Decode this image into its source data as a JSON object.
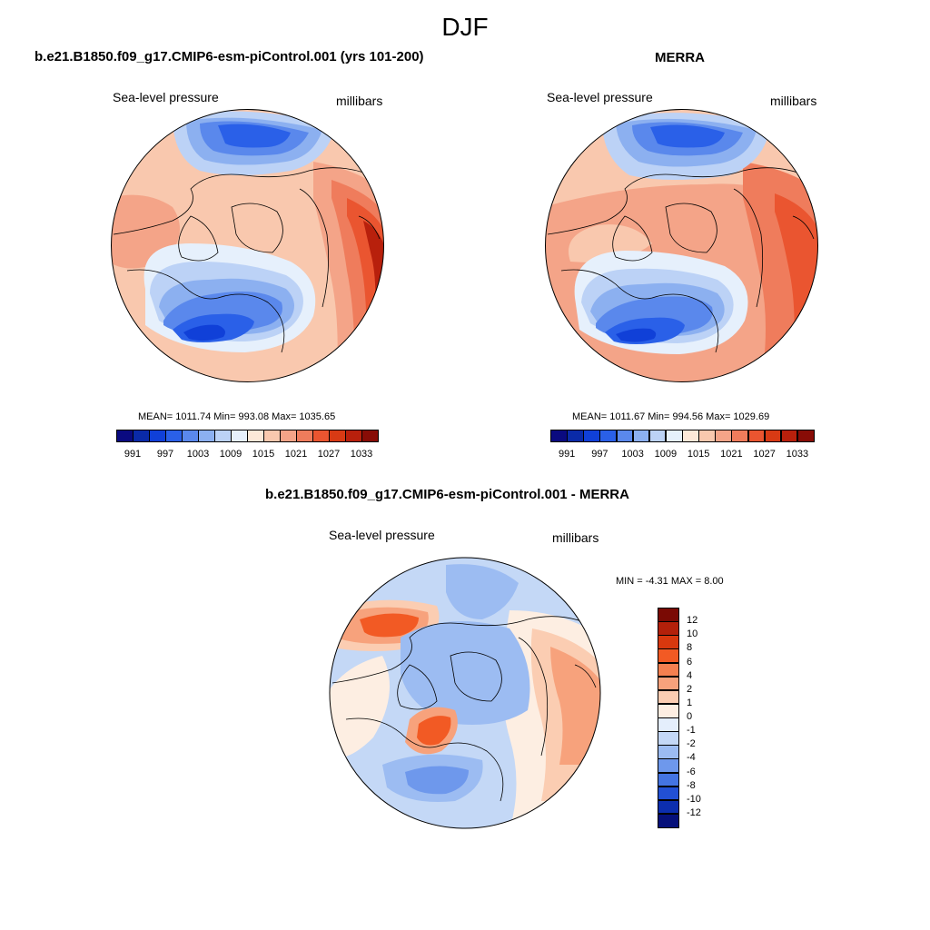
{
  "page": {
    "title": "DJF"
  },
  "panels": [
    {
      "id": "model",
      "title": "b.e21.B1850.f09_g17.CMIP6-esm-piControl.001 (yrs 101-200)",
      "left_label": "Sea-level pressure",
      "right_label": "millibars",
      "stats": "MEAN= 1011.74  Min= 993.08  Max= 1035.65",
      "colorbar_labels": [
        "991",
        "997",
        "1003",
        "1009",
        "1015",
        "1021",
        "1027",
        "1033"
      ]
    },
    {
      "id": "merra",
      "title": "MERRA",
      "left_label": "Sea-level pressure",
      "right_label": "millibars",
      "stats": "MEAN= 1011.67  Min= 994.56  Max= 1029.69",
      "colorbar_labels": [
        "991",
        "997",
        "1003",
        "1009",
        "1015",
        "1021",
        "1027",
        "1033"
      ]
    },
    {
      "id": "diff",
      "title": "b.e21.B1850.f09_g17.CMIP6-esm-piControl.001 - MERRA",
      "left_label": "Sea-level pressure",
      "right_label": "millibars",
      "stats": "MIN =  -4.31 MAX =   8.00",
      "colorbar_labels": [
        "12",
        "10",
        "8",
        "6",
        "4",
        "2",
        "1",
        "0",
        "-1",
        "-2",
        "-4",
        "-6",
        "-8",
        "-10",
        "-12"
      ]
    }
  ],
  "colors": {
    "abs_palette": [
      "#0a0a80",
      "#0a2aa8",
      "#1040d8",
      "#2a60e8",
      "#5a88ec",
      "#8cb0f0",
      "#bcd2f6",
      "#e6f0fc",
      "#fde8d8",
      "#f9c8ae",
      "#f4a488",
      "#ef7c5c",
      "#ea5530",
      "#d83a14",
      "#b8200c",
      "#880c06"
    ],
    "diff_palette": [
      "#7a0a04",
      "#b3200a",
      "#d8380e",
      "#f25a24",
      "#f58050",
      "#f7a27c",
      "#fbcdb2",
      "#fdeee2",
      "#e4eefc",
      "#c4d8f6",
      "#9cbcf2",
      "#6e98ec",
      "#4474e2",
      "#2250d4",
      "#0c2eae",
      "#06107a"
    ]
  },
  "map_data": {
    "projection": "north-polar-stereographic",
    "field": "Sea-level pressure (DJF)",
    "units": "millibars",
    "model_contour_levels": [
      991,
      994,
      997,
      1000,
      1003,
      1006,
      1009,
      1012,
      1015,
      1018,
      1021,
      1024,
      1027,
      1030,
      1033
    ],
    "diff_contour_levels": [
      -12,
      -10,
      -8,
      -6,
      -4,
      -2,
      -1,
      0,
      1,
      2,
      4,
      6,
      8,
      10,
      12
    ]
  }
}
